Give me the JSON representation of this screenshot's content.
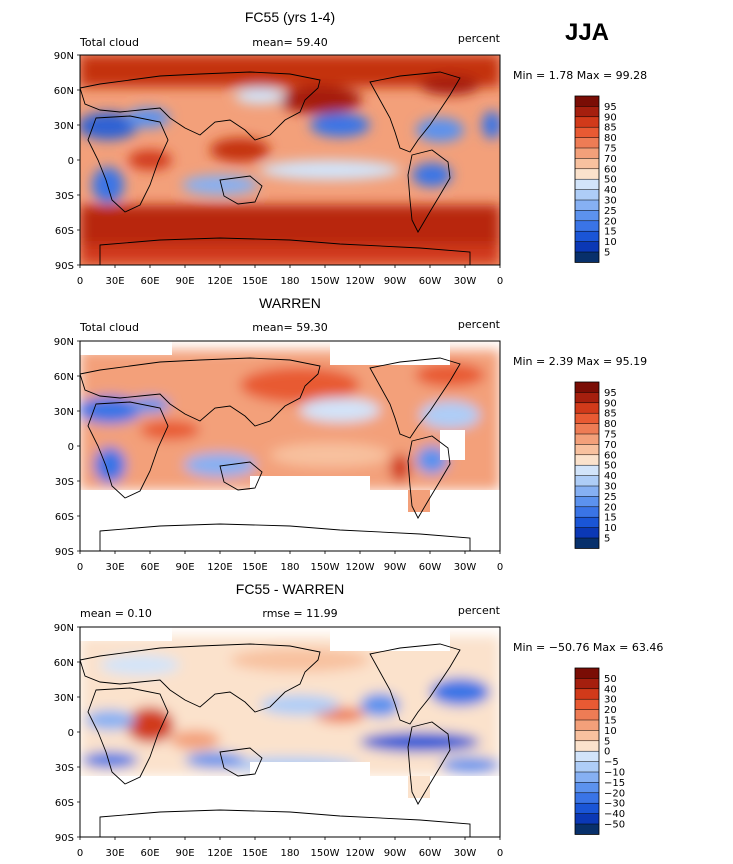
{
  "season": "JJA",
  "colors": {
    "diverging": [
      "#08306b",
      "#0b38b5",
      "#1a55d6",
      "#3a74e6",
      "#5c92ee",
      "#86b0f3",
      "#aecdf7",
      "#d2e4fa",
      "#fbe2cc",
      "#f8c19f",
      "#f3a07a",
      "#ee7c55",
      "#e85a33",
      "#d13a1a",
      "#a51f0e",
      "#7a0d05"
    ]
  },
  "axes": {
    "lat_ticks": [
      "90N",
      "60N",
      "30N",
      "0",
      "30S",
      "60S",
      "90S"
    ],
    "lon_ticks": [
      "0",
      "30E",
      "60E",
      "90E",
      "120E",
      "150E",
      "180",
      "150W",
      "120W",
      "90W",
      "60W",
      "30W",
      "0"
    ]
  },
  "panels": [
    {
      "title": "FC55 (yrs 1-4)",
      "left_label": "Total cloud",
      "center_label": "mean=  59.40",
      "right_label": "percent",
      "minmax": "Min =   1.78 Max =  99.28",
      "colorbar_labels": [
        "95",
        "90",
        "85",
        "80",
        "75",
        "70",
        "60",
        "50",
        "40",
        "30",
        "25",
        "20",
        "15",
        "10",
        "5"
      ],
      "kind": "model"
    },
    {
      "title": "WARREN",
      "left_label": "Total cloud",
      "center_label": "mean=  59.30",
      "right_label": "percent",
      "minmax": "Min =   2.39 Max =  95.19",
      "colorbar_labels": [
        "95",
        "90",
        "85",
        "80",
        "75",
        "70",
        "60",
        "50",
        "40",
        "30",
        "25",
        "20",
        "15",
        "10",
        "5"
      ],
      "kind": "obs"
    },
    {
      "title": "FC55 - WARREN",
      "left_label": "mean =    0.10",
      "center_label": "rmse =   11.99",
      "right_label": "percent",
      "minmax": "Min = −50.76 Max =  63.46",
      "colorbar_labels": [
        "50",
        "40",
        "30",
        "20",
        "15",
        "10",
        "5",
        "0",
        "−5",
        "−10",
        "−15",
        "−20",
        "−30",
        "−40",
        "−50"
      ],
      "kind": "diff"
    }
  ]
}
